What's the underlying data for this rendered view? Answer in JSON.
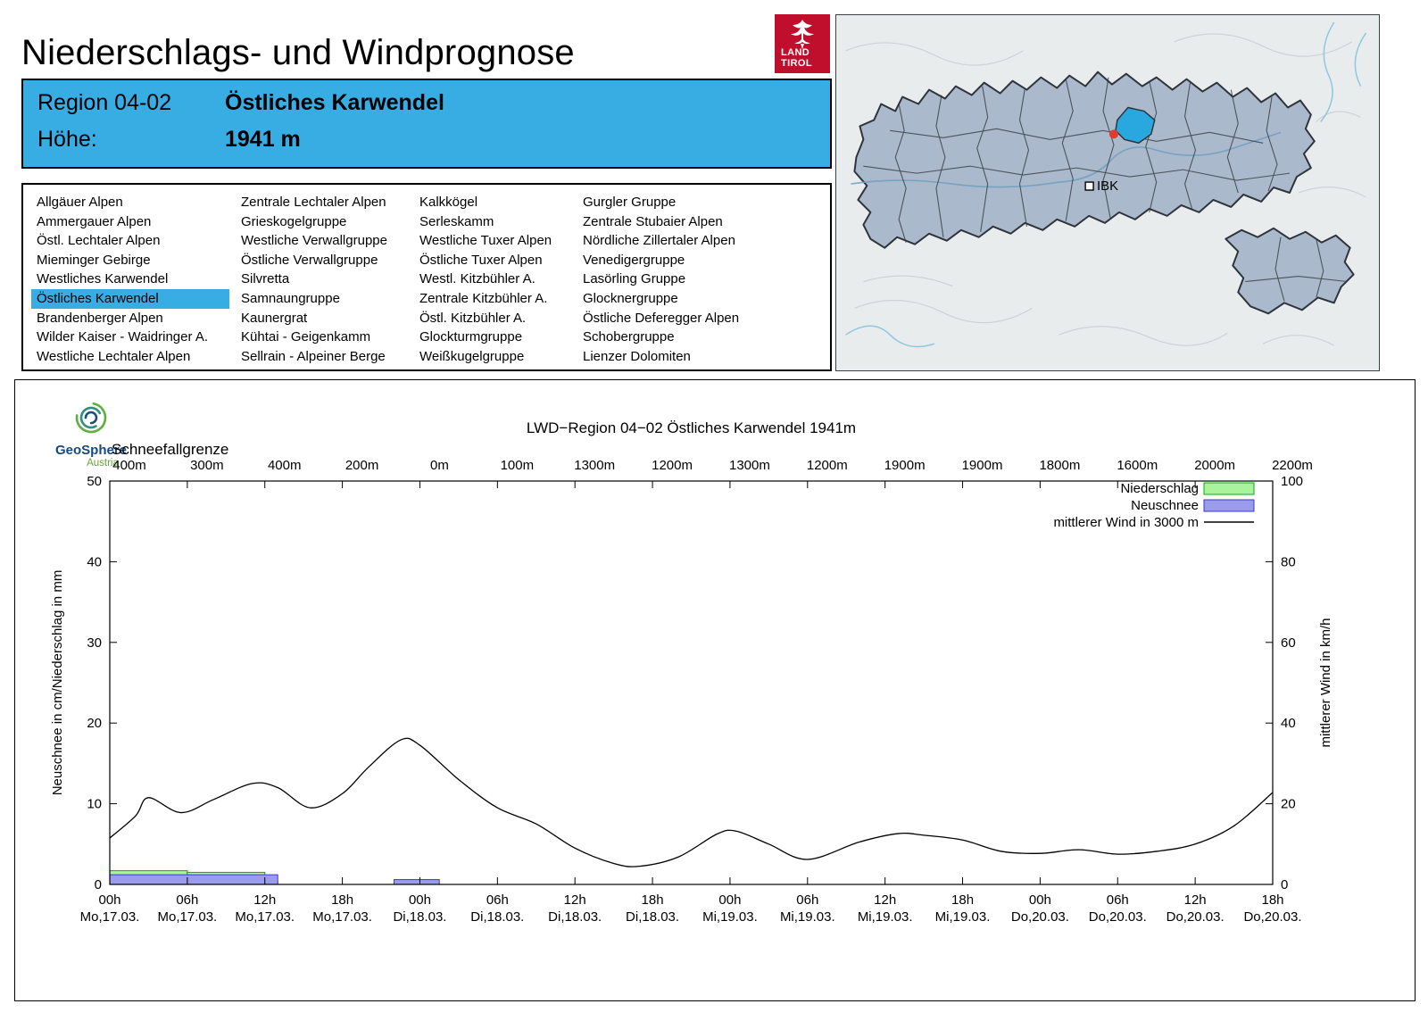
{
  "header": {
    "title": "Niederschlags- und Windprognose",
    "logo": {
      "line1": "LAND",
      "line2": "TIROL"
    }
  },
  "region_box": {
    "region_label": "Region 04-02",
    "region_name": "Östliches Karwendel",
    "hoehe_label": "Höhe:",
    "hoehe_value": "1941 m"
  },
  "region_list": {
    "selected": "Östliches Karwendel",
    "columns": [
      [
        "Allgäuer Alpen",
        "Ammergauer Alpen",
        "Östl. Lechtaler Alpen",
        "Mieminger Gebirge",
        "Westliches Karwendel",
        "Östliches Karwendel",
        "Brandenberger Alpen",
        "Wilder Kaiser - Waidringer A.",
        "Westliche Lechtaler Alpen"
      ],
      [
        "Zentrale Lechtaler Alpen",
        "Grieskogelgruppe",
        "Westliche Verwallgruppe",
        "Östliche Verwallgruppe",
        "Silvretta",
        "Samnaungruppe",
        "Kaunergrat",
        "Kühtai - Geigenkamm",
        "Sellrain - Alpeiner Berge"
      ],
      [
        "Kalkkögel",
        "Serleskamm",
        "Westliche Tuxer Alpen",
        "Östliche Tuxer Alpen",
        "Westl. Kitzbühler A.",
        "Zentrale Kitzbühler A.",
        "Östl. Kitzbühler A.",
        "Glockturmgruppe",
        "Weißkugelgruppe"
      ],
      [
        "Gurgler Gruppe",
        "Zentrale Stubaier Alpen",
        "Nördliche Zillertaler Alpen",
        "Venedigergruppe",
        "Lasörling Gruppe",
        "Glocknergruppe",
        "Östliche Deferegger Alpen",
        "Schobergruppe",
        "Lienzer Dolomiten"
      ]
    ]
  },
  "map": {
    "ibk_label": "IBK",
    "highlight_color": "#29a8e0",
    "marker_color": "#e23b2e"
  },
  "geosphere": {
    "name": "GeoSphere",
    "sub": "Austria"
  },
  "chart_data": {
    "type": "line+bar",
    "title": "LWD−Region 04−02 Östliches Karwendel 1941m",
    "snowline": {
      "label": "Schneefallgrenze",
      "values": [
        "400m",
        "300m",
        "400m",
        "200m",
        "0m",
        "100m",
        "1300m",
        "1200m",
        "1300m",
        "1200m",
        "1900m",
        "1900m",
        "1800m",
        "1600m",
        "2000m",
        "2200m"
      ]
    },
    "x_hours_range": [
      0,
      90
    ],
    "x_tick_step": 6,
    "x_ticks": [
      {
        "hour": "00h",
        "date": "Mo,17.03."
      },
      {
        "hour": "06h",
        "date": "Mo,17.03."
      },
      {
        "hour": "12h",
        "date": "Mo,17.03."
      },
      {
        "hour": "18h",
        "date": "Mo,17.03."
      },
      {
        "hour": "00h",
        "date": "Di,18.03."
      },
      {
        "hour": "06h",
        "date": "Di,18.03."
      },
      {
        "hour": "12h",
        "date": "Di,18.03."
      },
      {
        "hour": "18h",
        "date": "Di,18.03."
      },
      {
        "hour": "00h",
        "date": "Mi,19.03."
      },
      {
        "hour": "06h",
        "date": "Mi,19.03."
      },
      {
        "hour": "12h",
        "date": "Mi,19.03."
      },
      {
        "hour": "18h",
        "date": "Mi,19.03."
      },
      {
        "hour": "00h",
        "date": "Do,20.03."
      },
      {
        "hour": "06h",
        "date": "Do,20.03."
      },
      {
        "hour": "12h",
        "date": "Do,20.03."
      },
      {
        "hour": "18h",
        "date": "Do,20.03."
      }
    ],
    "y_left": {
      "label": "Neuschnee in cm/Niederschlag in mm",
      "min": 0,
      "max": 50,
      "step": 10
    },
    "y_right": {
      "label": "mittlerer Wind in km/h",
      "min": 0,
      "max": 100,
      "step": 20
    },
    "series": [
      {
        "name": "Niederschlag",
        "type": "bar",
        "unit": "mm",
        "axis": "left",
        "color_fill": "#a9f39c",
        "color_border": "#00b400",
        "segments": [
          {
            "from": 0,
            "to": 6,
            "value": 1.7
          },
          {
            "from": 6,
            "to": 12,
            "value": 1.5
          },
          {
            "from": 12,
            "to": 13,
            "value": 0.4
          },
          {
            "from": 22,
            "to": 25.5,
            "value": 0.15
          }
        ]
      },
      {
        "name": "Neuschnee",
        "type": "bar",
        "unit": "cm",
        "axis": "left",
        "color_fill": "#9b9bec",
        "color_border": "#3a3ac8",
        "segments": [
          {
            "from": 0,
            "to": 13,
            "value": 1.2
          },
          {
            "from": 22,
            "to": 25.5,
            "value": 0.6
          }
        ]
      },
      {
        "name": "mittlerer Wind in 3000 m",
        "type": "line",
        "unit": "km/h",
        "axis": "right",
        "color": "#000000",
        "points": [
          [
            0,
            11.5
          ],
          [
            2,
            17
          ],
          [
            3,
            21.5
          ],
          [
            5.5,
            17.8
          ],
          [
            8,
            21
          ],
          [
            11,
            25
          ],
          [
            13,
            24
          ],
          [
            15.5,
            19
          ],
          [
            18,
            22.5
          ],
          [
            20,
            29
          ],
          [
            22.5,
            35.8
          ],
          [
            24,
            34.5
          ],
          [
            27,
            26
          ],
          [
            30,
            19
          ],
          [
            33,
            15
          ],
          [
            36,
            9
          ],
          [
            39,
            5.2
          ],
          [
            41,
            4.5
          ],
          [
            44,
            6.8
          ],
          [
            47,
            12.5
          ],
          [
            48.5,
            13.2
          ],
          [
            51,
            10
          ],
          [
            54,
            6.2
          ],
          [
            58,
            10.5
          ],
          [
            61,
            12.6
          ],
          [
            63,
            12.2
          ],
          [
            66,
            11
          ],
          [
            69,
            8.2
          ],
          [
            72,
            7.7
          ],
          [
            75,
            8.6
          ],
          [
            78,
            7.5
          ],
          [
            81,
            8.2
          ],
          [
            84,
            10
          ],
          [
            87,
            14.5
          ],
          [
            90,
            22.8
          ]
        ]
      }
    ]
  }
}
